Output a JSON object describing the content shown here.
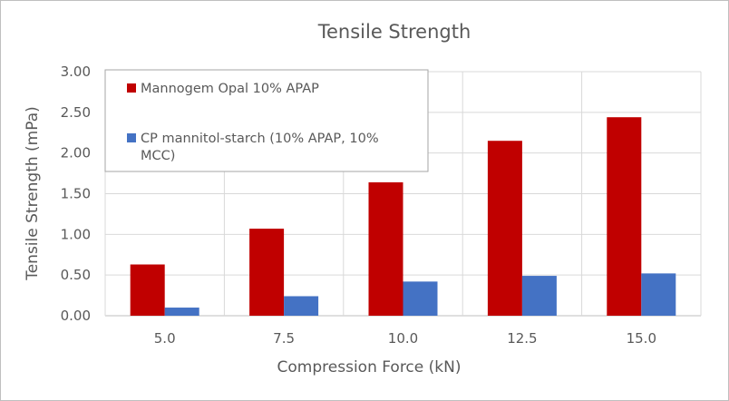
{
  "chart_data": {
    "type": "bar",
    "title": "Tensile Strength",
    "xlabel": "Compression Force (kN)",
    "ylabel": "Tensile Strength (mPa)",
    "categories": [
      "5.0",
      "7.5",
      "10.0",
      "12.5",
      "15.0"
    ],
    "yticks": [
      "0.00",
      "0.50",
      "1.00",
      "1.50",
      "2.00",
      "2.50",
      "3.00"
    ],
    "ylim": [
      0,
      3
    ],
    "grid": true,
    "legend_position": "top-left",
    "series": [
      {
        "name": "Mannogem Opal 10% APAP",
        "color": "#c00000",
        "values": [
          0.63,
          1.07,
          1.64,
          2.15,
          2.44
        ]
      },
      {
        "name": "CP mannitol-starch (10% APAP, 10% MCC)",
        "name_lines": [
          "CP mannitol-starch (10% APAP, 10%",
          "MCC)"
        ],
        "color": "#4472c4",
        "values": [
          0.1,
          0.24,
          0.42,
          0.49,
          0.52
        ]
      }
    ]
  }
}
